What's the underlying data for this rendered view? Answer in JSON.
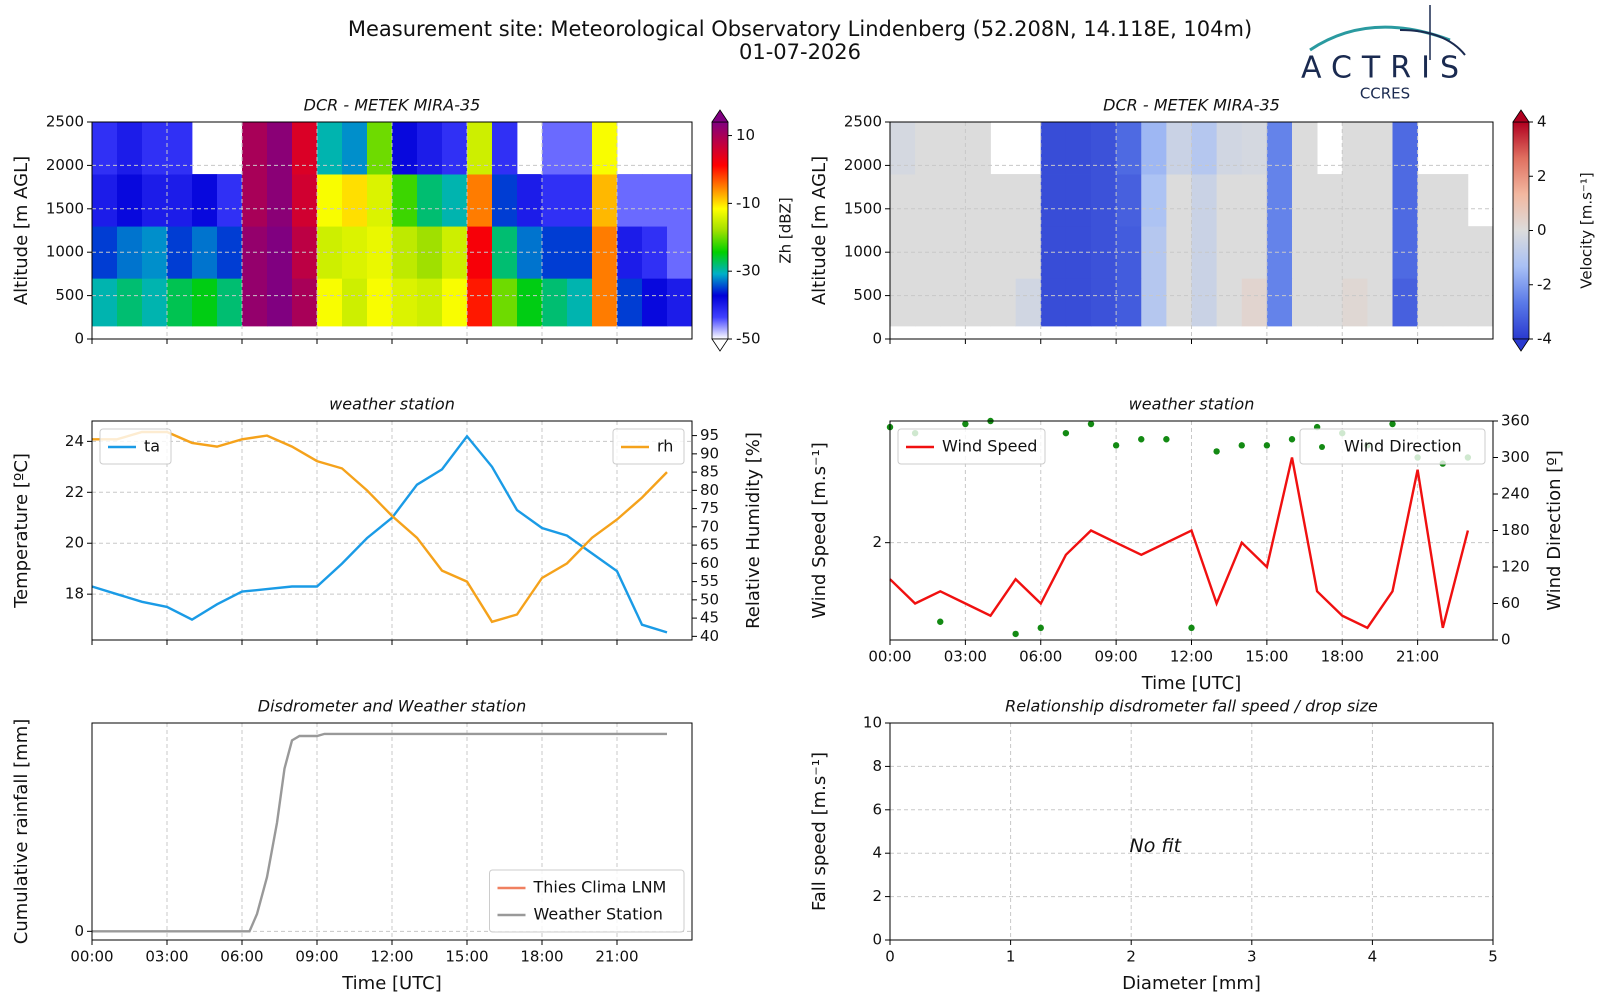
{
  "header": {
    "title": "Measurement site: Meteorological Observatory Lindenberg (52.208N, 14.118E, 104m)",
    "date": "01-07-2026",
    "logo": "ACTRIS",
    "logo_sub": "CCRES"
  },
  "chart_data": [
    {
      "type": "heatmap",
      "title": "DCR - METEK MIRA-35",
      "ylabel": "Altitude [m AGL]",
      "xlim": [
        0,
        24
      ],
      "xticks": [
        0,
        3,
        6,
        9,
        12,
        15,
        18,
        21
      ],
      "xtick_labels": false,
      "ylim": [
        0,
        2500
      ],
      "yticks": [
        0,
        500,
        1000,
        1500,
        2000,
        2500
      ],
      "grid": true,
      "x": [
        0,
        1,
        2,
        3,
        4,
        5,
        6,
        7,
        8,
        9,
        10,
        11,
        12,
        13,
        14,
        15,
        16,
        17,
        18,
        19,
        20,
        21,
        22,
        23,
        24
      ],
      "y": [
        150,
        700,
        1300,
        1900,
        2500
      ],
      "z": [
        [
          -30,
          -28,
          -30,
          -27,
          -25,
          -28,
          12,
          14,
          10,
          -12,
          -15,
          -12,
          -14,
          -15,
          -12,
          0,
          -20,
          -25,
          -28,
          -30,
          -5,
          -35,
          -38,
          -40
        ],
        [
          -35,
          -33,
          -32,
          -35,
          -33,
          -35,
          12,
          14,
          8,
          -15,
          -14,
          -13,
          -16,
          -18,
          -15,
          2,
          -28,
          -33,
          -35,
          -35,
          -5,
          -40,
          -42,
          -45
        ],
        [
          -40,
          -38,
          -40,
          -40,
          -38,
          -42,
          10,
          13,
          6,
          -12,
          -10,
          -14,
          -22,
          -28,
          -30,
          -5,
          -35,
          -40,
          -42,
          -42,
          -8,
          -45,
          -45,
          -45
        ],
        [
          -42,
          -40,
          -42,
          -42,
          null,
          null,
          10,
          13,
          5,
          -30,
          -32,
          -20,
          -38,
          -40,
          -42,
          -15,
          -42,
          null,
          -45,
          -45,
          -12,
          null,
          null,
          null
        ]
      ],
      "colorbar": {
        "label": "Zh [dBZ]",
        "lim": [
          -50,
          14
        ],
        "ticks": [
          -50,
          -30,
          -10,
          10
        ],
        "colors": [
          "#ffffff",
          "#4040ff",
          "#0000d8",
          "#00b0c8",
          "#00d000",
          "#a0e000",
          "#ffff00",
          "#ff8000",
          "#ff0000",
          "#c00040",
          "#800080"
        ]
      }
    },
    {
      "type": "heatmap",
      "title": "DCR - METEK MIRA-35",
      "ylabel": "Altitude [m AGL]",
      "xlim": [
        0,
        24
      ],
      "xticks": [
        0,
        3,
        6,
        9,
        12,
        15,
        18,
        21
      ],
      "xtick_labels": false,
      "ylim": [
        0,
        2500
      ],
      "yticks": [
        0,
        500,
        1000,
        1500,
        2000,
        2500
      ],
      "grid": true,
      "x": [
        0,
        1,
        2,
        3,
        4,
        5,
        6,
        7,
        8,
        9,
        10,
        11,
        12,
        13,
        14,
        15,
        16,
        17,
        18,
        19,
        20,
        21,
        22,
        23,
        24
      ],
      "y": [
        150,
        700,
        1300,
        1900,
        2500
      ],
      "z": [
        [
          0,
          0,
          0,
          0,
          0,
          -0.3,
          -3.6,
          -3.6,
          -3.5,
          -3.3,
          -1,
          0,
          -0.5,
          0,
          0.3,
          -2.5,
          0,
          0,
          0.2,
          0,
          -3.2,
          0,
          0,
          0
        ],
        [
          0,
          0,
          0,
          0,
          0,
          0,
          -3.6,
          -3.6,
          -3.5,
          -3.3,
          -1,
          0,
          -0.5,
          0,
          0,
          -2.5,
          0,
          0,
          0,
          0,
          -3,
          0,
          0,
          0
        ],
        [
          0,
          0,
          0,
          0,
          0,
          0,
          -3.6,
          -3.6,
          -3.5,
          -3.2,
          -1.2,
          0,
          -0.5,
          0,
          0,
          -2.5,
          0,
          0,
          0,
          0,
          -3,
          0,
          0,
          null
        ],
        [
          -0.2,
          0,
          0,
          0,
          null,
          null,
          -3.6,
          -3.6,
          -3.5,
          -3,
          -1.5,
          -0.5,
          -1,
          -0.3,
          -0.2,
          -2.5,
          0,
          null,
          0,
          0,
          -3,
          null,
          null,
          null
        ]
      ],
      "colorbar": {
        "label": "Velocity [m.s⁻¹]",
        "lim": [
          -4,
          4
        ],
        "ticks": [
          -4,
          -2,
          0,
          2,
          4
        ],
        "colors": [
          "#2a3ad0",
          "#5a7ae8",
          "#a8c0f5",
          "#dcdcdc",
          "#f2b8a0",
          "#e07060",
          "#b00020"
        ]
      }
    },
    {
      "type": "line",
      "title": "weather station",
      "ylabel": "Temperature [ºC]",
      "y2label": "Relative Humidity [%]",
      "xlim": [
        0,
        24
      ],
      "xticks": [
        0,
        3,
        6,
        9,
        12,
        15,
        18,
        21
      ],
      "xtick_labels": false,
      "ylim": [
        16.2,
        24.8
      ],
      "yticks": [
        18,
        20,
        22,
        24
      ],
      "y2lim": [
        39,
        99
      ],
      "y2ticks": [
        40,
        45,
        50,
        55,
        60,
        65,
        70,
        75,
        80,
        85,
        90,
        95
      ],
      "grid": true,
      "x": [
        0,
        1,
        2,
        3,
        4,
        5,
        6,
        7,
        8,
        9,
        10,
        11,
        12,
        13,
        14,
        15,
        16,
        17,
        18,
        19,
        20,
        21,
        22,
        23
      ],
      "series": [
        {
          "name": "ta",
          "color": "#1a9be6",
          "legend": "upper left",
          "values": [
            18.3,
            18.0,
            17.7,
            17.5,
            17.0,
            17.6,
            18.1,
            18.2,
            18.3,
            18.3,
            19.2,
            20.2,
            21.0,
            22.3,
            22.9,
            24.2,
            23.0,
            21.3,
            20.6,
            20.3,
            19.6,
            18.9,
            16.8,
            16.5
          ]
        },
        {
          "name": "rh",
          "color": "#f5a21b",
          "legend": "upper right",
          "axis": "y2",
          "values": [
            94,
            94,
            96,
            96,
            93,
            92,
            94,
            95,
            92,
            88,
            86,
            80,
            73,
            67,
            58,
            55,
            44,
            46,
            56,
            60,
            67,
            72,
            78,
            85
          ]
        }
      ]
    },
    {
      "type": "line",
      "ylabel": "Wind Speed [m.s⁻¹]",
      "y2label": "Wind Direction [º]",
      "title": "weather station",
      "xlabel": "Time [UTC]",
      "xlim": [
        0,
        24
      ],
      "xticks": [
        {
          "value": 0,
          "label": "00:00"
        },
        {
          "value": 3,
          "label": "03:00"
        },
        {
          "value": 6,
          "label": "06:00"
        },
        {
          "value": 9,
          "label": "09:00"
        },
        {
          "value": 12,
          "label": "12:00"
        },
        {
          "value": 15,
          "label": "15:00"
        },
        {
          "value": 18,
          "label": "18:00"
        },
        {
          "value": 21,
          "label": "21:00"
        }
      ],
      "ylim": [
        1.2,
        3.0
      ],
      "yticks": [
        2
      ],
      "y2lim": [
        0,
        360
      ],
      "y2ticks": [
        0,
        60,
        120,
        180,
        240,
        300,
        360
      ],
      "grid": true,
      "x": [
        0,
        1,
        2,
        3,
        4,
        5,
        6,
        7,
        8,
        9,
        10,
        11,
        12,
        13,
        14,
        15,
        16,
        17,
        18,
        19,
        20,
        21,
        22,
        23
      ],
      "series": [
        {
          "name": "Wind Speed",
          "color": "#f01010",
          "legend": "upper left",
          "values": [
            1.7,
            1.5,
            1.6,
            1.5,
            1.4,
            1.7,
            1.5,
            1.9,
            2.1,
            2.0,
            1.9,
            2.0,
            2.1,
            1.5,
            2.0,
            1.8,
            2.7,
            1.6,
            1.4,
            1.3,
            1.6,
            2.6,
            1.3,
            2.1
          ]
        },
        {
          "name": "Wind Direction",
          "color": "#138a13",
          "legend": "upper right",
          "axis": "y2",
          "style": "points",
          "values": [
            350,
            340,
            30,
            355,
            360,
            10,
            20,
            340,
            355,
            320,
            330,
            330,
            20,
            310,
            320,
            320,
            330,
            350,
            340,
            320,
            355,
            300,
            290,
            300
          ]
        }
      ]
    },
    {
      "type": "line",
      "title": "Disdrometer and Weather station",
      "ylabel": "Cumulative rainfall [mm]",
      "xlabel": "Time [UTC]",
      "xlim": [
        0,
        24
      ],
      "xticks": [
        {
          "value": 0,
          "label": "00:00"
        },
        {
          "value": 3,
          "label": "03:00"
        },
        {
          "value": 6,
          "label": "06:00"
        },
        {
          "value": 9,
          "label": "09:00"
        },
        {
          "value": 12,
          "label": "12:00"
        },
        {
          "value": 15,
          "label": "15:00"
        },
        {
          "value": 18,
          "label": "18:00"
        },
        {
          "value": 21,
          "label": "21:00"
        }
      ],
      "ylim": [
        -0.4,
        9.6
      ],
      "yticks": [
        0
      ],
      "grid": true,
      "legend": "lower right",
      "x": [
        0,
        6.3,
        6.6,
        7.0,
        7.4,
        7.7,
        8.0,
        8.3,
        9.0,
        9.3,
        23.0
      ],
      "series": [
        {
          "name": "Thies Clima LNM",
          "color": "#f08060",
          "values": [
            null,
            null,
            null,
            null,
            null,
            null,
            null,
            null,
            null,
            null,
            null
          ]
        },
        {
          "name": "Weather Station",
          "color": "#999999",
          "values": [
            0,
            0,
            0.8,
            2.5,
            5,
            7.5,
            8.8,
            9.0,
            9.0,
            9.1,
            9.1
          ]
        }
      ]
    },
    {
      "type": "scatter",
      "title": "Relationship disdrometer fall speed / drop size",
      "xlabel": "Diameter [mm]",
      "ylabel": "Fall speed [m.s⁻¹]",
      "xlim": [
        0,
        5
      ],
      "xticks": [
        0,
        1,
        2,
        3,
        4,
        5
      ],
      "ylim": [
        0,
        10
      ],
      "yticks": [
        0,
        2,
        4,
        6,
        8,
        10
      ],
      "grid": true,
      "annotation": "No fit",
      "x": [],
      "values": []
    }
  ]
}
